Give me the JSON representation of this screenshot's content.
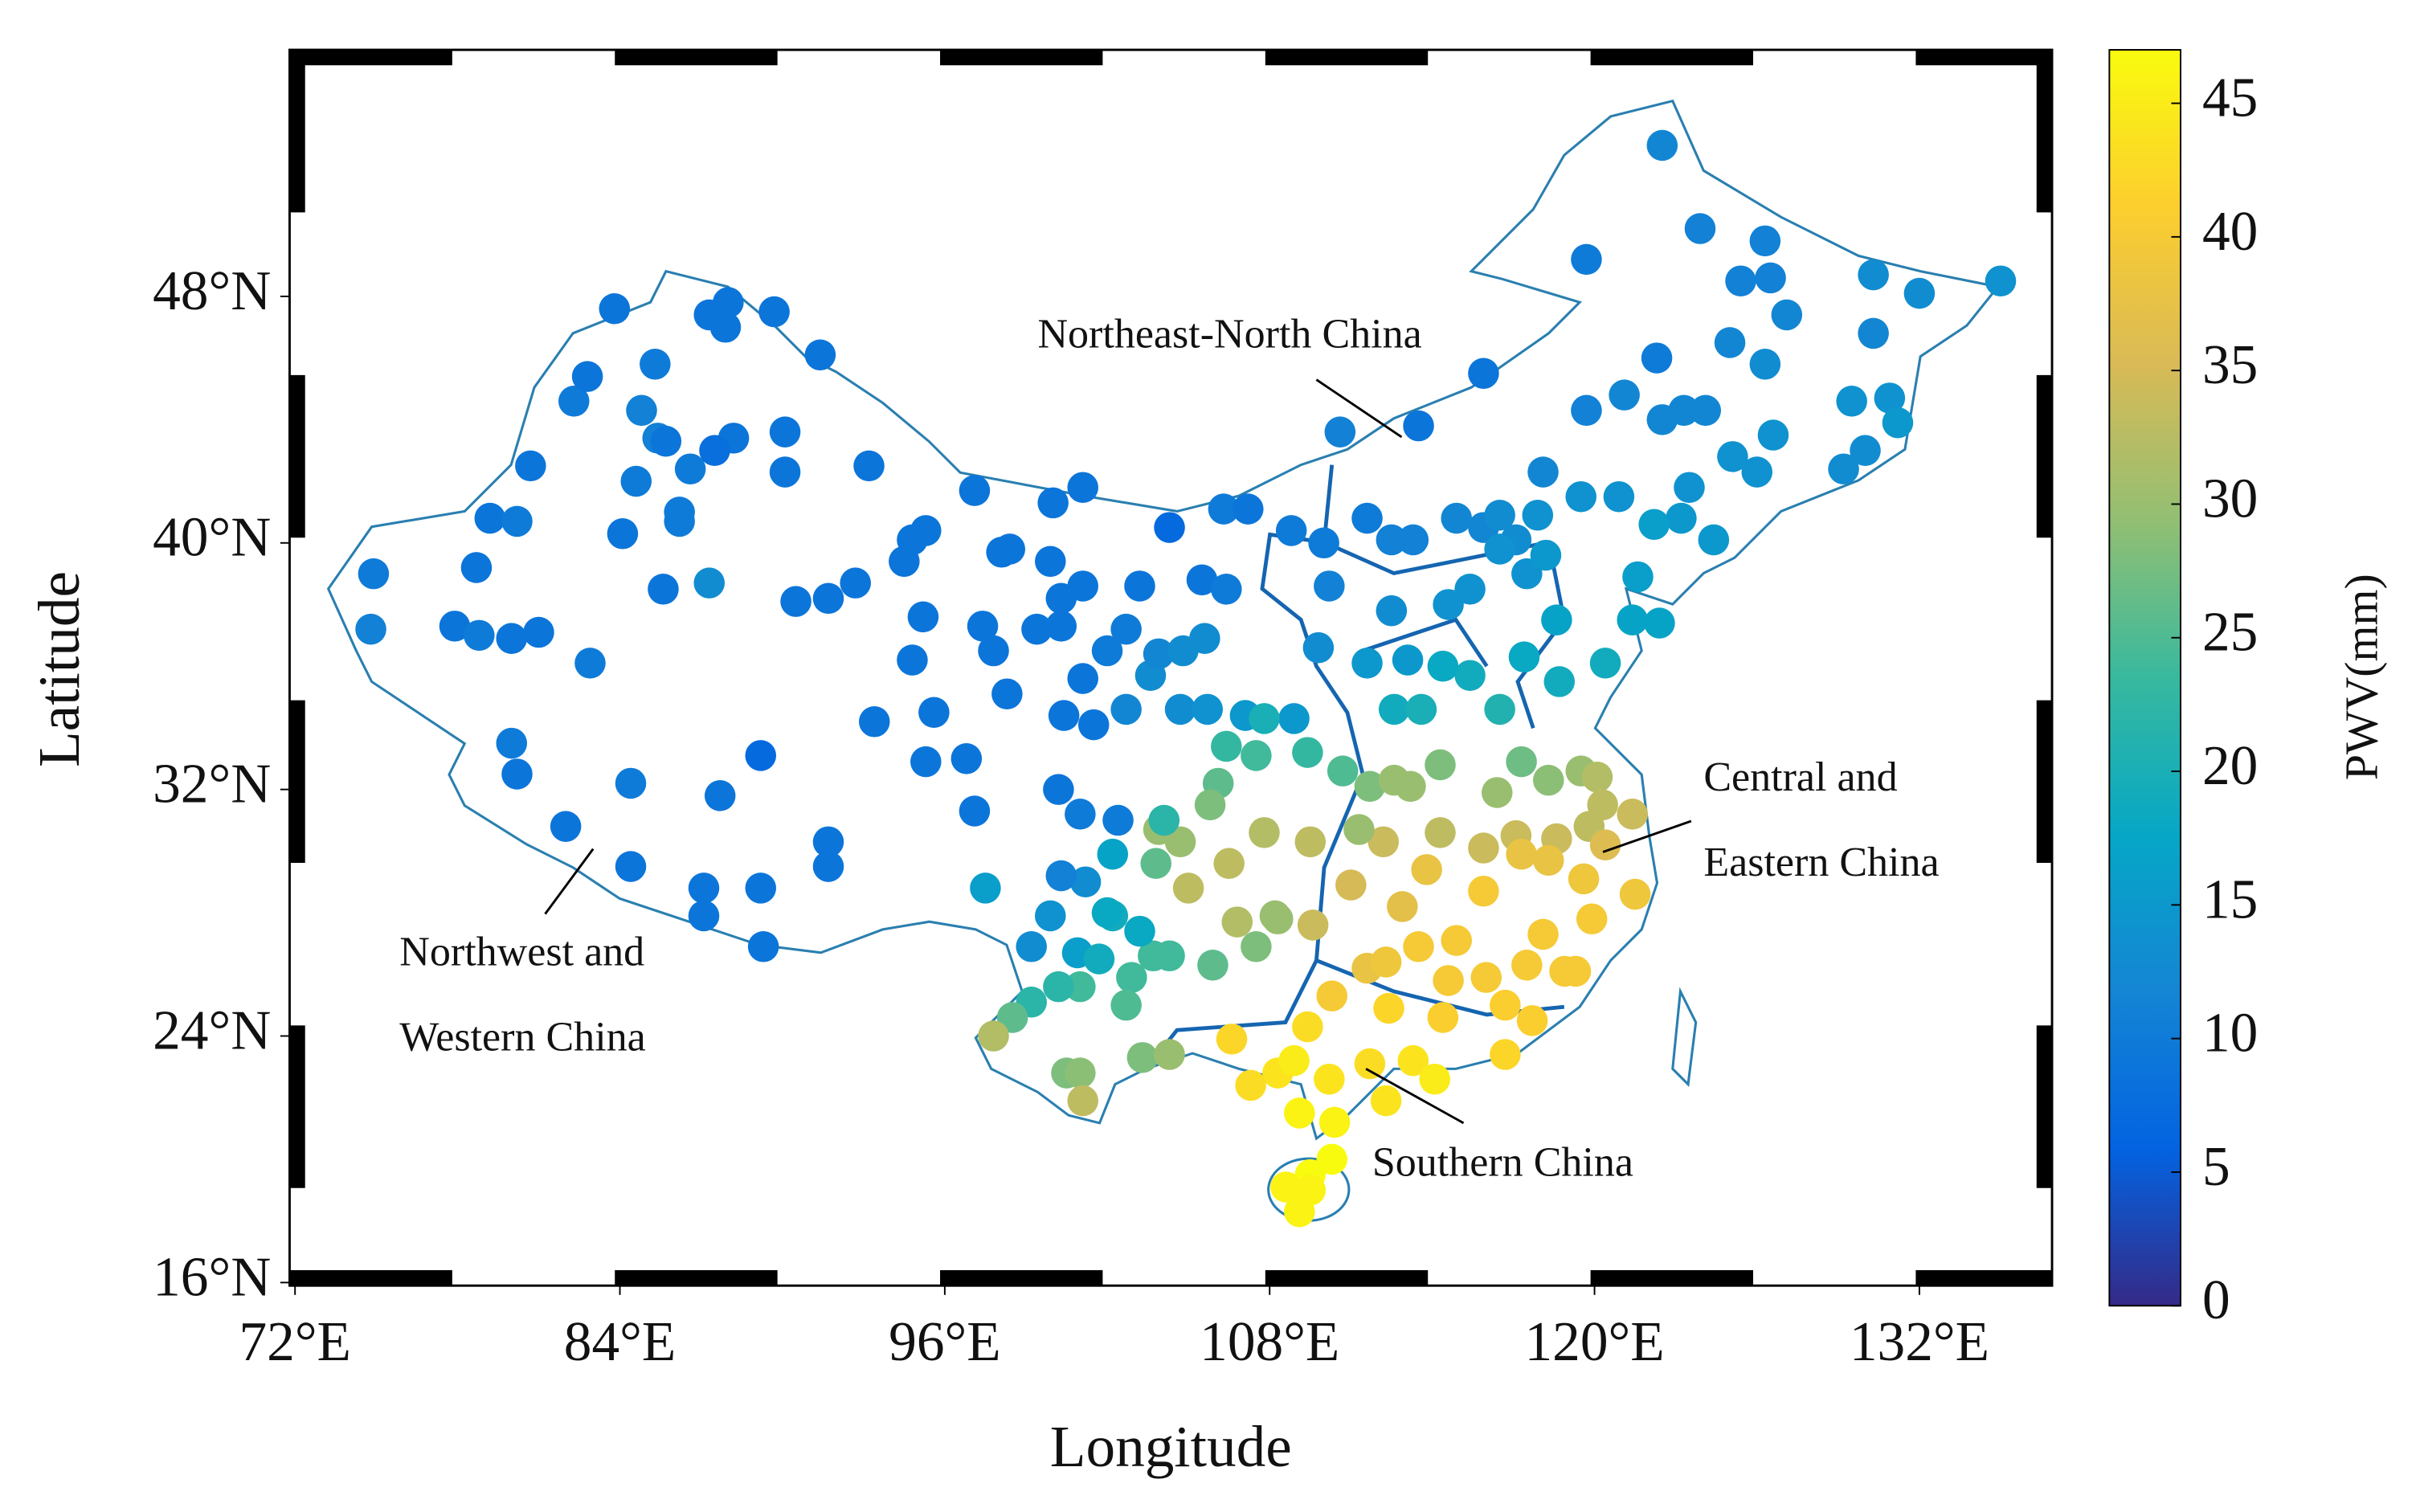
{
  "chart_data": {
    "type": "scatter",
    "x_label": "Longitude",
    "y_label": "Latitude",
    "colorbar_label": "PWV(mm)",
    "xlim": [
      71.8,
      136.9
    ],
    "ylim": [
      15.9,
      56
    ],
    "xticks": [
      {
        "value": 72,
        "label": "72°E"
      },
      {
        "value": 84,
        "label": "84°E"
      },
      {
        "value": 96,
        "label": "96°E"
      },
      {
        "value": 108,
        "label": "108°E"
      },
      {
        "value": 120,
        "label": "120°E"
      },
      {
        "value": 132,
        "label": "132°E"
      }
    ],
    "yticks": [
      {
        "value": 16,
        "label": "16°N"
      },
      {
        "value": 24,
        "label": "24°N"
      },
      {
        "value": 32,
        "label": "32°N"
      },
      {
        "value": 40,
        "label": "40°N"
      },
      {
        "value": 48,
        "label": "48°N"
      }
    ],
    "clim": [
      0,
      47
    ],
    "cticks": [
      0,
      5,
      10,
      15,
      20,
      25,
      30,
      35,
      40,
      45
    ],
    "colormap": [
      "#352a87",
      "#0363e1",
      "#1485d4",
      "#06a7c6",
      "#38b99e",
      "#92bf73",
      "#d9ba56",
      "#fcce2e",
      "#f9fb0e"
    ],
    "annotations": [
      {
        "lines": [
          "Northeast-North China"
        ]
      },
      {
        "lines": [
          "Northwest and",
          "Western China"
        ]
      },
      {
        "lines": [
          "Central and",
          "Eastern China"
        ]
      },
      {
        "lines": [
          "Southern China"
        ]
      }
    ],
    "x": [
      74.9,
      74.8,
      77.9,
      78.8,
      80,
      81,
      79.2,
      80.2,
      78.7,
      82.9,
      80.7,
      82.3,
      82.8,
      83.8,
      85.3,
      84.8,
      85.4,
      84.6,
      85.7,
      86.6,
      88.2,
      87.5,
      84.1,
      85.6,
      87.3,
      86.2,
      86.2,
      87.3,
      88,
      87.9,
      89.7,
      91.4,
      90.1,
      90.1,
      91.7,
      92.7,
      90.5,
      93.4,
      80,
      80.2,
      82,
      84.4,
      84.4,
      87.7,
      89.2,
      87.1,
      87.1,
      89.2,
      89.3,
      91.7,
      91.7,
      93.2,
      94.5,
      94.8,
      95.3,
      97.1,
      95.2,
      94.8,
      95.6,
      95.3,
      96.8,
      97.1,
      97.5,
      97.4,
      98.1,
      98.4,
      97.8,
      98.3,
      99.9,
      100,
      101.1,
      99.4,
      100.3,
      100.3,
      101.1,
      100.4,
      101.5,
      100.2,
      101,
      102.4,
      101.1,
      102,
      102.7,
      103.2,
      104.3,
      105.5,
      106.4,
      103.6,
      103.9,
      105.6,
      104.7,
      102.7,
      106.3,
      107.2,
      108.8,
      110,
      111.6,
      112.5,
      113.3,
      114.9,
      115.9,
      116.5,
      117.1,
      116.5,
      117.5,
      118.2,
      114.6,
      115.4,
      112.5,
      111.6,
      113.1,
      110.2,
      109.8,
      108.9,
      107.1,
      105.7,
      104.8,
      110.6,
      113.5,
      115.9,
      118.1,
      119.7,
      119.7,
      122.5,
      123.9,
      126.3,
      125.4,
      126.5,
      127.1,
      130.3,
      132,
      135,
      130.3,
      125,
      122.3,
      121.1,
      122.5,
      123.3,
      124.1,
      126.3,
      129.5,
      130.9,
      131.2,
      126.6,
      126,
      125.1,
      129.2,
      130,
      123.5,
      123.2,
      124.4,
      122.2,
      120.9,
      119.5,
      117.9,
      121.6,
      122.4,
      121.4,
      120.4,
      118.6,
      117.4,
      118.7,
      116.5,
      115.4,
      114.4,
      112.6,
      113.6,
      107.8,
      109.4,
      110.7,
      111.7,
      113.2,
      112.6,
      114.3,
      116.4,
      117.3,
      118.3,
      119.5,
      120.1,
      120.3,
      121.4,
      119.8,
      118.6,
      117.1,
      115.9,
      114.3,
      112.2,
      111.3,
      109.5,
      107.8,
      106.5,
      104.7,
      103.9,
      105,
      106.8,
      108.3,
      109.6,
      111,
      112.9,
      113.8,
      115.9,
      117.3,
      118.3,
      119.6,
      120.4,
      121.5,
      119.9,
      118.1,
      117.5,
      118.9,
      119.3,
      114.9,
      113.5,
      111.6,
      110.3,
      112.3,
      114.6,
      116,
      116.7,
      117.7,
      114.4,
      112.4,
      111.7,
      110.2,
      109.4,
      108.3,
      107.3,
      106.6,
      108.9,
      113.3,
      116.7,
      114.1,
      112.3,
      110.4,
      109.1,
      110.3,
      109.5,
      108.6,
      109.1,
      109.5,
      102.9,
      103.7,
      102.7,
      101,
      100.2,
      99.2,
      98.5,
      97.8,
      100.5,
      101,
      103.3,
      104.3,
      101.1,
      99.9,
      99.2,
      100.9,
      101.7,
      102.2,
      103.2,
      104.3,
      105.9,
      107.5,
      108.2,
      102,
      101.2,
      100.3,
      102.2,
      103.8,
      104.1,
      106.1,
      105.8,
      107.5,
      106.4
    ],
    "values": [
      39,
      37.2,
      37.3,
      37,
      36.9,
      37.1,
      40.8,
      40.7,
      39.2,
      36.1,
      42.5,
      44.6,
      45.4,
      47.6,
      45.8,
      44.3,
      43.4,
      42,
      43.3,
      42.4,
      43.4,
      43,
      40.3,
      38.5,
      38.7,
      41,
      40.7,
      47.4,
      47.8,
      47,
      47.5,
      46.1,
      43.6,
      42.3,
      38.2,
      38.7,
      38.1,
      34.2,
      33.5,
      32.5,
      30.8,
      32.2,
      29.5,
      31.8,
      33.1,
      28.8,
      27.9,
      28.8,
      26.9,
      30.3,
      29.5,
      42.5,
      39.4,
      40.1,
      40.4,
      41.7,
      37.6,
      36.2,
      34.5,
      32.9,
      33,
      31.3,
      28.8,
      37.3,
      39.7,
      39.8,
      36.5,
      35.1,
      39.4,
      41.3,
      41.8,
      37.2,
      37.3,
      38.2,
      38.6,
      34.4,
      34.1,
      32,
      31.2,
      31,
      35.6,
      36.5,
      37.2,
      38.6,
      40.5,
      38.8,
      38.5,
      35.7,
      36.4,
      36.9,
      34.6,
      34.6,
      41.1,
      41.1,
      40.4,
      40,
      40.8,
      40.1,
      40.1,
      40.8,
      40.5,
      40.9,
      40.1,
      39.8,
      39,
      39.6,
      38,
      38.5,
      37.8,
      36.1,
      36.2,
      38.6,
      36.6,
      34.3,
      34.4,
      34.6,
      36.5,
      43.6,
      43.8,
      45.5,
      42.3,
      44.3,
      49.2,
      52.9,
      50.2,
      49.8,
      48.5,
      48.6,
      47.4,
      48.7,
      48.1,
      48.5,
      46.8,
      46.5,
      46,
      44.8,
      44,
      44.3,
      44.3,
      45.8,
      44.6,
      44.7,
      43.9,
      43.5,
      42.3,
      42.8,
      42.4,
      43,
      41.8,
      40.8,
      40.1,
      40.6,
      41.5,
      41.5,
      40.9,
      38.9,
      37.4,
      37.5,
      36.1,
      37.5,
      36.3,
      35.5,
      34.6,
      35.7,
      36,
      34.6,
      34.6,
      34.3,
      33.2,
      32.6,
      32.1,
      32.1,
      32.3,
      32.8,
      31.9,
      32.9,
      32.3,
      32.6,
      32.4,
      31.5,
      31.2,
      30.8,
      30.4,
      30.5,
      30.1,
      30.6,
      30.3,
      30.7,
      30.3,
      30.6,
      29.6,
      30.3,
      30.7,
      28.8,
      27.7,
      27.8,
      27.6,
      28.9,
      28.2,
      29.4,
      28.7,
      29.9,
      29.7,
      29.1,
      30.2,
      28.6,
      27.8,
      27.3,
      26.3,
      26.1,
      26.1,
      27.1,
      26.9,
      26.2,
      25.3,
      26.4,
      25.8,
      25.9,
      25,
      24.5,
      24.6,
      24.9,
      23.1,
      22.6,
      24.3,
      22.8,
      22.4,
      23.9,
      23.2,
      23.2,
      23.4,
      22.6,
      21.9,
      21.2,
      21.5,
      20,
      19.5,
      19.1,
      18.3,
      19,
      25.9,
      26.6,
      25,
      25.6,
      25.6,
      25.1,
      24.6,
      24,
      22.8,
      22.8,
      23.3,
      23.4,
      21.9,
      27.9,
      26.9,
      26.7,
      26.5,
      27.9,
      27.4,
      26.6,
      26.3,
      26.9,
      27.9,
      28,
      29,
      29.2,
      29.9,
      29.6,
      31,
      32.2,
      31.5,
      33.1,
      33.4
    ],
    "color_values": [
      10,
      11,
      9,
      10,
      9,
      9,
      9,
      10,
      9,
      10,
      9,
      10,
      9,
      9,
      10,
      11,
      11,
      10,
      9,
      10,
      9,
      8,
      9,
      9,
      13,
      10,
      10,
      9,
      9,
      9,
      9,
      9,
      9,
      9,
      9,
      9,
      9,
      9,
      10,
      9,
      9,
      10,
      9,
      9,
      7,
      9,
      9,
      9,
      9,
      9,
      9,
      9,
      9,
      9,
      9,
      9,
      9,
      9,
      9,
      9,
      9,
      9,
      16,
      9,
      9,
      9,
      9,
      9,
      9,
      9,
      9,
      9,
      9,
      9,
      9,
      9,
      9,
      9,
      10,
      10,
      9,
      10,
      10,
      9,
      7,
      9,
      10,
      13,
      12,
      13,
      13,
      12,
      10,
      9,
      10,
      10,
      10,
      11,
      11,
      12,
      12,
      13,
      13,
      14,
      14,
      15,
      14,
      14,
      13,
      15,
      15,
      11,
      13,
      15,
      15,
      14,
      13,
      11,
      9,
      9,
      12,
      11,
      10,
      12,
      11,
      11,
      11,
      11,
      12,
      13,
      13,
      14,
      12,
      12,
      10,
      12,
      12,
      12,
      12,
      13,
      14,
      14,
      15,
      14,
      14,
      14,
      13,
      13,
      14,
      15,
      15,
      16,
      14,
      14,
      14,
      16,
      17,
      17,
      19,
      17,
      18,
      19,
      21,
      19,
      18,
      19,
      20,
      20,
      23,
      25,
      28,
      30,
      30,
      28,
      30,
      27,
      29,
      30,
      32,
      33,
      34,
      33,
      34,
      34,
      34,
      33,
      34,
      30,
      33,
      32,
      33,
      30,
      30,
      33,
      32,
      30,
      34,
      35,
      37,
      38,
      40,
      38,
      38,
      39,
      36,
      39,
      40,
      40,
      40,
      40,
      40,
      40,
      40,
      38,
      40,
      39,
      40,
      40,
      41,
      41,
      41,
      42,
      43,
      44,
      43,
      44,
      43,
      42,
      45,
      44,
      42,
      45,
      44,
      46,
      46,
      47,
      47,
      46,
      46,
      46,
      24,
      24,
      25,
      24,
      22,
      22,
      26,
      32,
      28,
      29,
      28,
      30,
      33,
      14,
      13,
      16,
      19,
      19,
      18,
      24,
      26,
      28,
      30,
      18,
      13,
      11,
      17,
      26,
      22,
      26,
      28,
      24,
      23
    ]
  }
}
